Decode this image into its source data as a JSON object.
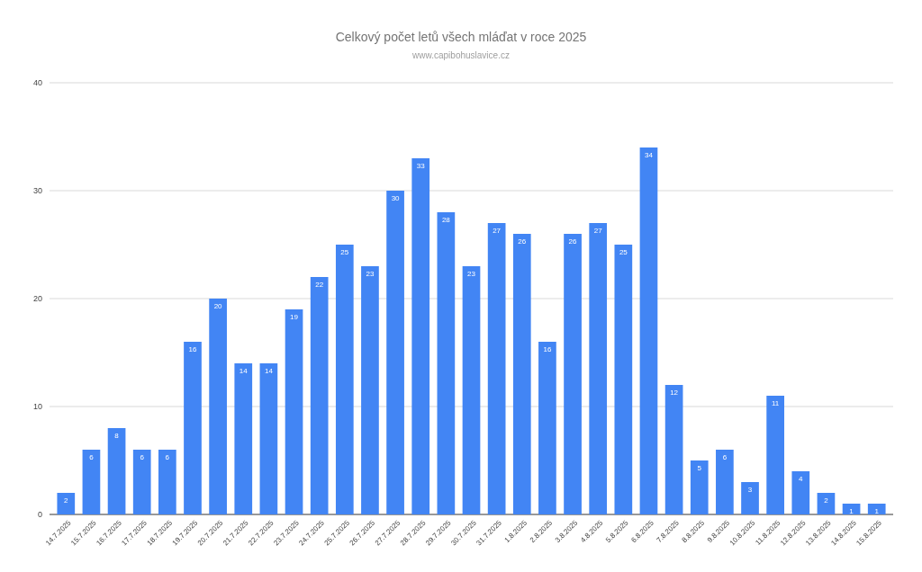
{
  "chart_data": {
    "type": "bar",
    "title": "Celkový počet letů všech mláďat v roce 2025",
    "subtitle": "www.capibohuslavice.cz",
    "categories": [
      "14.7.2025",
      "15.7.2025",
      "16.7.2025",
      "17.7.2025",
      "18.7.2025",
      "19.7.2025",
      "20.7.2025",
      "21.7.2025",
      "22.7.2025",
      "23.7.2025",
      "24.7.2025",
      "25.7.2025",
      "26.7.2025",
      "27.7.2025",
      "28.7.2025",
      "29.7.2025",
      "30.7.2025",
      "31.7.2025",
      "1.8.2025",
      "2.8.2025",
      "3.8.2025",
      "4.8.2025",
      "5.8.2025",
      "6.8.2025",
      "7.8.2025",
      "8.8.2025",
      "9.8.2025",
      "10.8.2025",
      "11.8.2025",
      "12.8.2025",
      "13.8.2025",
      "14.8.2025",
      "15.8.2025"
    ],
    "values": [
      2,
      6,
      8,
      6,
      6,
      16,
      20,
      14,
      14,
      19,
      22,
      25,
      23,
      30,
      33,
      28,
      23,
      27,
      26,
      16,
      26,
      27,
      25,
      34,
      12,
      5,
      6,
      3,
      11,
      4,
      2,
      1,
      1
    ],
    "color": "#4285f4",
    "ylim": [
      0,
      40
    ],
    "yticks": [
      0,
      10,
      20,
      30,
      40
    ],
    "grid": "y",
    "data_labels": true
  }
}
